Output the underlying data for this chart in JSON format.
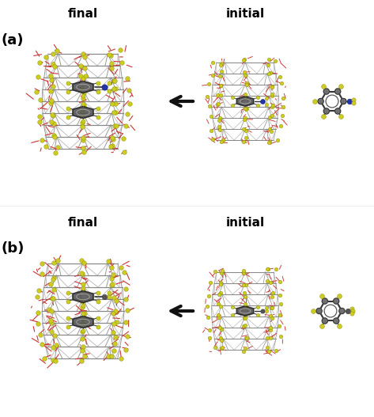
{
  "figure_width": 4.73,
  "figure_height": 5.27,
  "dpi": 100,
  "background_color": "#ffffff",
  "panel_a": {
    "label": "(a)",
    "label_fontsize": 13,
    "label_fontweight": "bold",
    "left_title": "final",
    "right_title": "initial",
    "title_fontsize": 11,
    "title_fontweight": "bold"
  },
  "panel_b": {
    "label": "(b)",
    "label_fontsize": 13,
    "label_fontweight": "bold",
    "left_title": "final",
    "right_title": "initial",
    "title_fontsize": 11,
    "title_fontweight": "bold"
  },
  "arrow_color": "#111111",
  "atom_yellow": "#cccc22",
  "atom_blue": "#2233aa",
  "bond_gray": "#888888",
  "bond_red": "#cc3333",
  "ring_dark": "#444444",
  "ring_fill": "#707070"
}
